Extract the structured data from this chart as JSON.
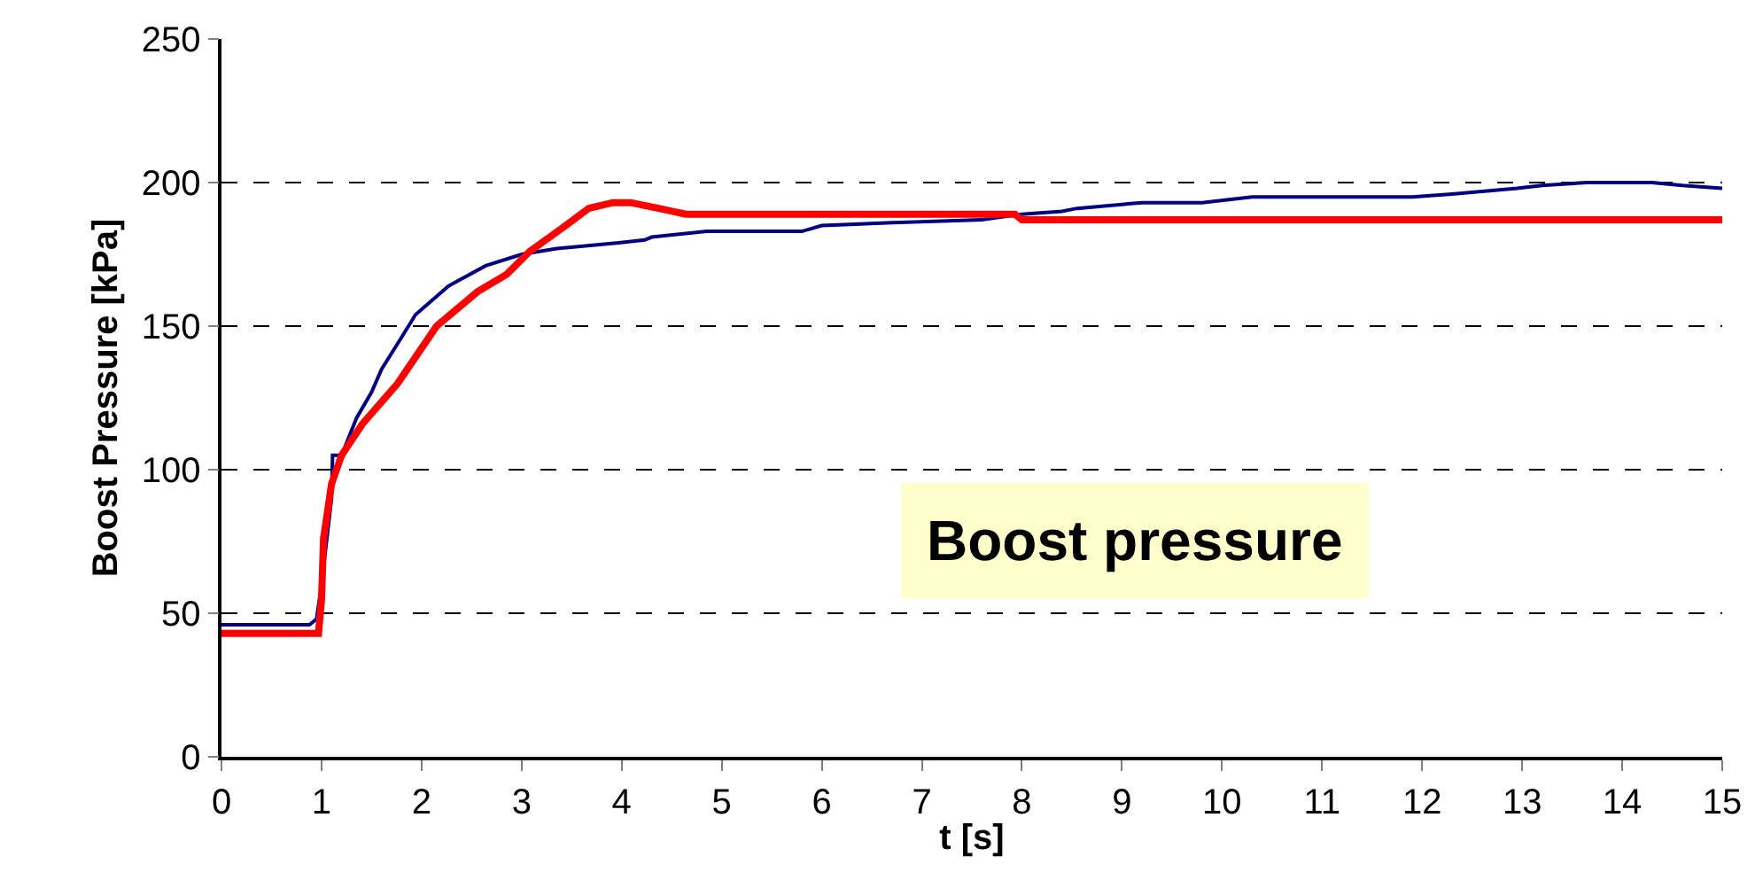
{
  "chart_data": {
    "type": "line",
    "xlabel": "t [s]",
    "ylabel": "Boost Pressure [kPa]",
    "xlim": [
      0,
      15
    ],
    "xticks": [
      0,
      1,
      2,
      3,
      4,
      5,
      6,
      7,
      8,
      9,
      10,
      11,
      12,
      13,
      14,
      15
    ],
    "ylim": [
      0,
      250
    ],
    "yticks": [
      0,
      50,
      100,
      150,
      200,
      250
    ],
    "grid": "y",
    "marker": "none",
    "line_style": "solid",
    "annotations": [
      "Boost pressure"
    ],
    "series": [
      {
        "color": "#000080",
        "x": [
          0,
          0.8,
          0.88,
          0.95,
          1.0,
          1.05,
          1.1,
          1.11,
          1.2,
          1.35,
          1.5,
          1.6,
          1.78,
          1.94,
          2.27,
          2.64,
          3.0,
          3.35,
          3.97,
          4.23,
          4.3,
          4.85,
          5.8,
          6.0,
          6.7,
          7.6,
          8.0,
          8.4,
          8.55,
          9.2,
          9.8,
          10.3,
          11.9,
          12.3,
          12.95,
          13.2,
          13.65,
          14.3,
          14.6,
          15
        ],
        "values": [
          46,
          46,
          46,
          48,
          60,
          75,
          90,
          105,
          105,
          118,
          127,
          135,
          145,
          154,
          164,
          171,
          175,
          177,
          179,
          180,
          181,
          183,
          183,
          185,
          186,
          187,
          189,
          190,
          191,
          193,
          193,
          195,
          195,
          196,
          198,
          199,
          200,
          200,
          199,
          198
        ]
      },
      {
        "color": "#ff0000",
        "x": [
          0,
          0.97,
          1.0,
          1.02,
          1.1,
          1.2,
          1.41,
          1.76,
          2.15,
          2.56,
          2.85,
          3.08,
          3.44,
          3.67,
          3.91,
          4.09,
          4.37,
          4.64,
          7.93,
          8.0,
          15
        ],
        "values": [
          43,
          43,
          55,
          76,
          95,
          105,
          116,
          130,
          150,
          162,
          168,
          176,
          185,
          191,
          193,
          193,
          191,
          189,
          189,
          187,
          187
        ]
      }
    ]
  }
}
